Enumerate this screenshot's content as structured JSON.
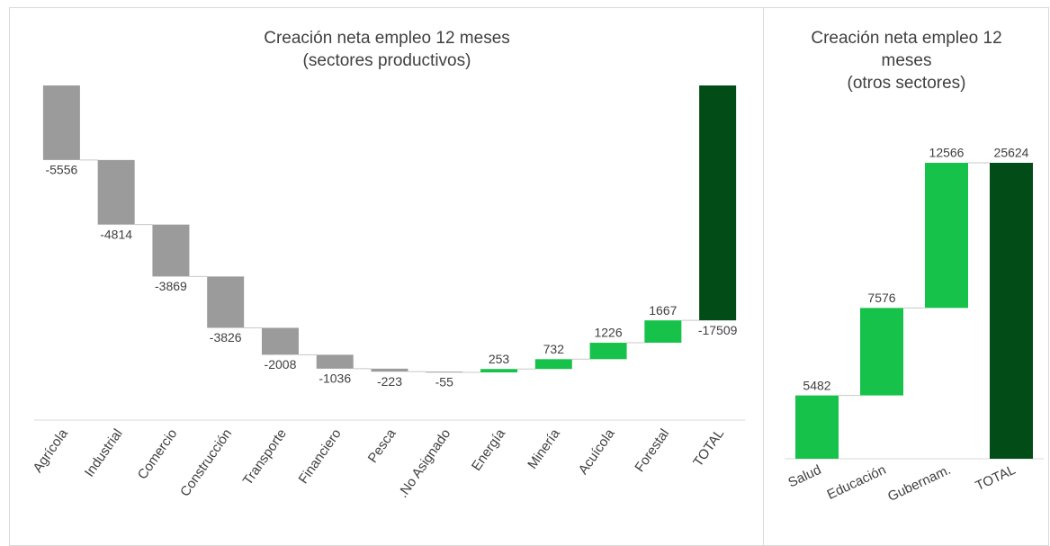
{
  "chart_data": [
    {
      "type": "waterfall",
      "title": "Creación neta empleo 12 meses",
      "subtitle": "(sectores productivos)",
      "categories": [
        "Agrícola",
        "Industrial",
        "Comercio",
        "Construcción",
        "Transporte",
        "Financiero",
        "Pesca",
        ".No Asignado",
        "Energía",
        "Minería",
        "Acuícola",
        "Forestal",
        "TOTAL"
      ],
      "values": [
        -5556,
        -4814,
        -3869,
        -3826,
        -2008,
        -1036,
        -223,
        -55,
        253,
        732,
        1226,
        1667,
        -17509
      ],
      "colors": {
        "decrease": "#9b9b9b",
        "increase": "#17c24b",
        "total": "#024d17"
      }
    },
    {
      "type": "waterfall",
      "title": "Creación neta empleo 12 meses",
      "subtitle": "(otros sectores)",
      "categories": [
        "Salud",
        "Educación",
        "Gubernam.",
        "TOTAL"
      ],
      "values": [
        5482,
        7576,
        12566,
        25624
      ],
      "colors": {
        "decrease": "#9b9b9b",
        "increase": "#17c24b",
        "total": "#024d17"
      }
    }
  ]
}
